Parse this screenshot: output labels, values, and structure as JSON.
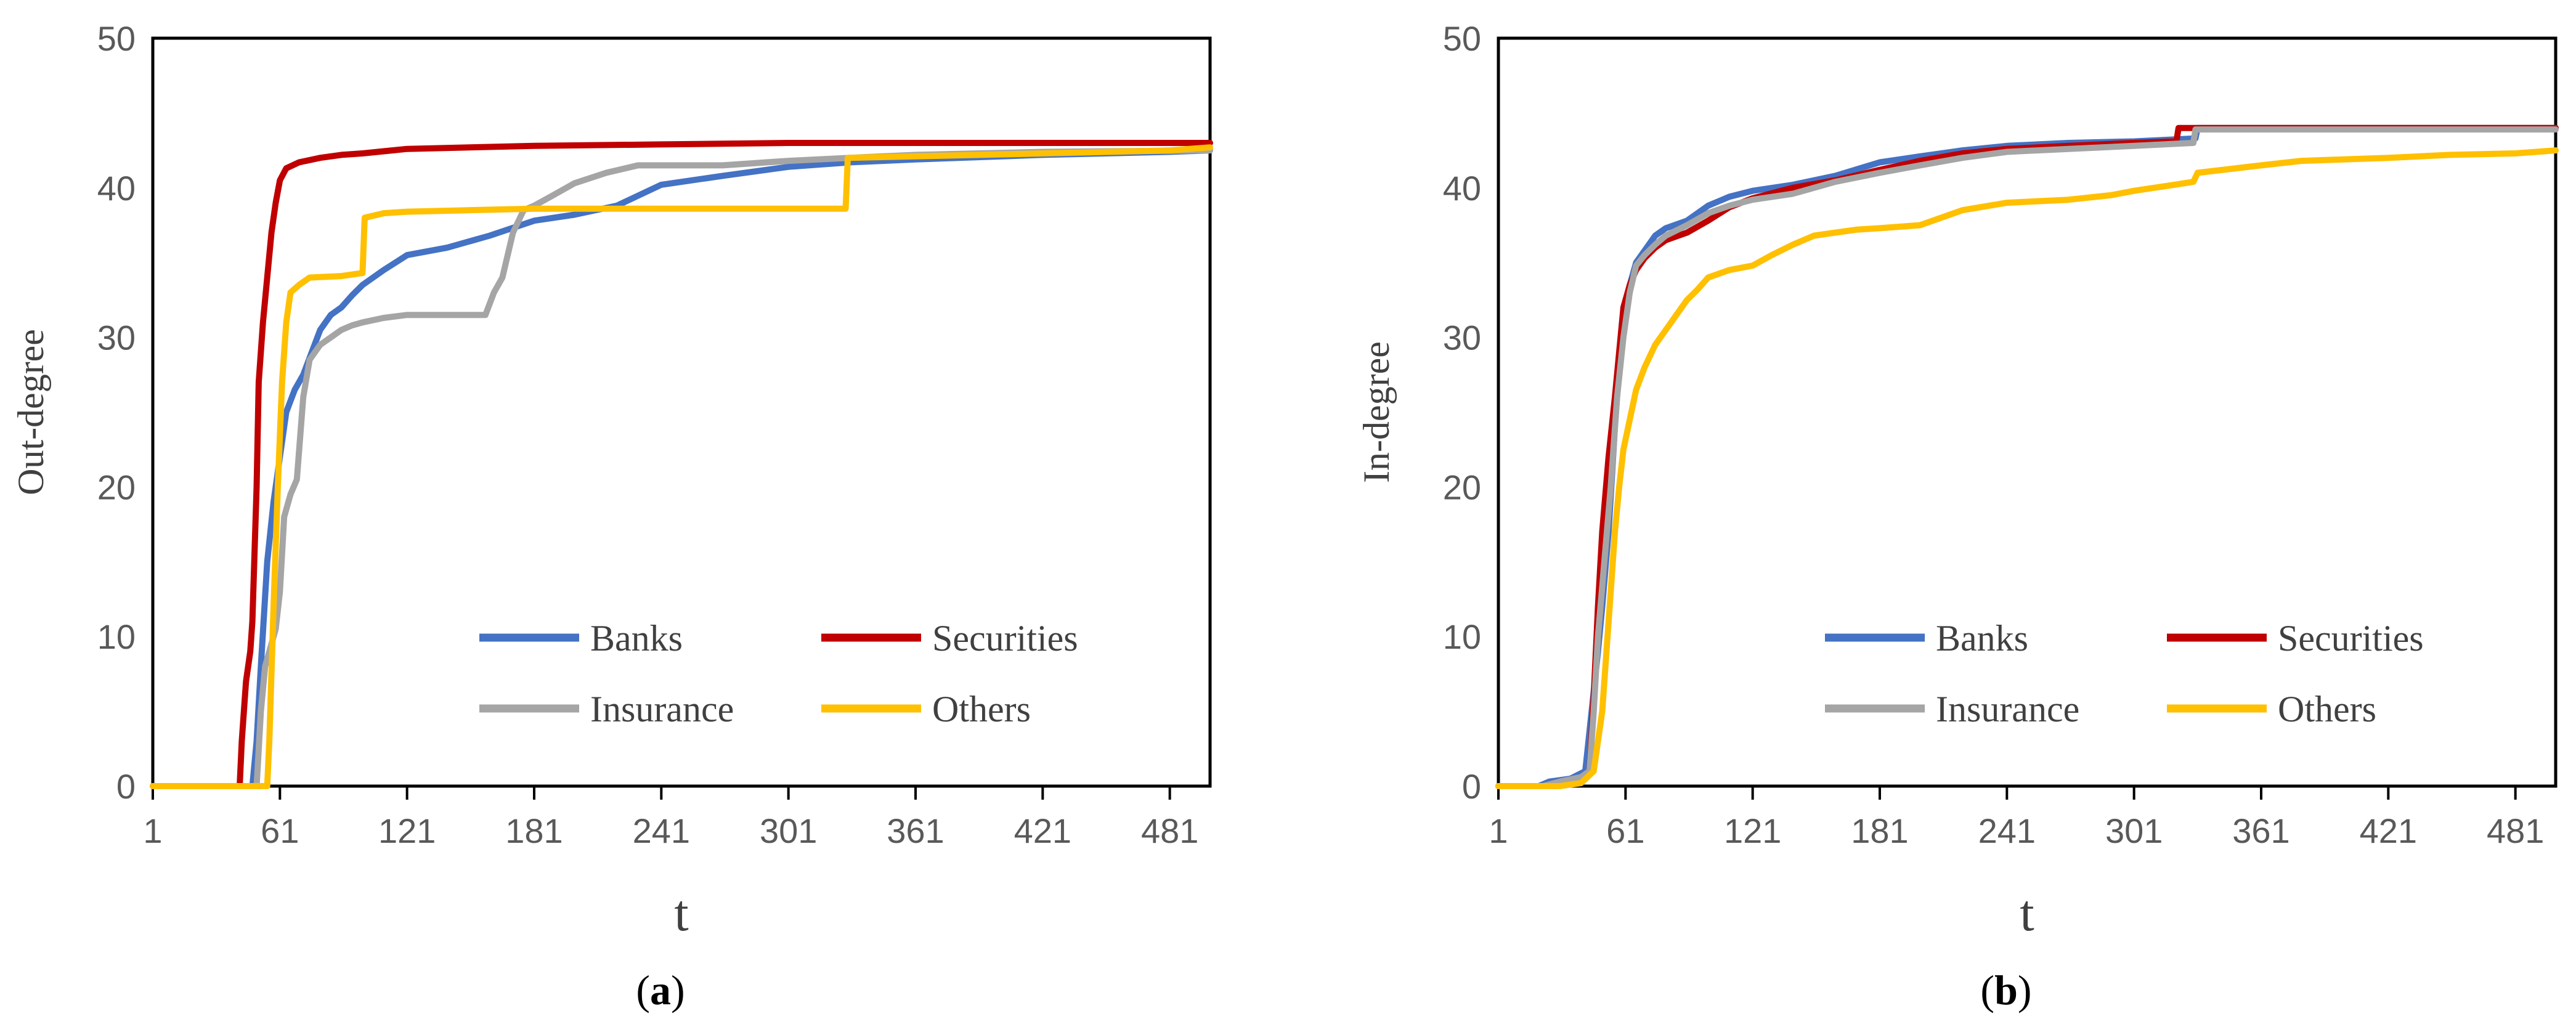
{
  "colors": {
    "banks": "#4472C4",
    "securities": "#C00000",
    "insurance": "#A5A5A5",
    "others": "#FFC000",
    "axis": "#000000",
    "tick_text": "#595959"
  },
  "chart_data": [
    {
      "id": "a",
      "type": "line",
      "caption_open": "(",
      "caption_letter": "a",
      "caption_close": ")",
      "xlabel": "t",
      "ylabel": "Out-degree",
      "xlim": [
        1,
        500
      ],
      "ylim": [
        0,
        50
      ],
      "x_ticks": [
        1,
        61,
        121,
        181,
        241,
        301,
        361,
        421,
        481
      ],
      "y_ticks": [
        0,
        10,
        20,
        30,
        40,
        50
      ],
      "legend_position": "bottom-right",
      "series": [
        {
          "name": "Banks",
          "color_key": "banks",
          "points": [
            [
              1,
              0
            ],
            [
              48,
              0
            ],
            [
              50,
              3
            ],
            [
              52,
              8
            ],
            [
              55,
              15
            ],
            [
              58,
              19
            ],
            [
              61,
              22
            ],
            [
              64,
              25
            ],
            [
              68,
              26.5
            ],
            [
              72,
              27.5
            ],
            [
              76,
              29
            ],
            [
              80,
              30.5
            ],
            [
              85,
              31.5
            ],
            [
              90,
              32
            ],
            [
              95,
              32.8
            ],
            [
              100,
              33.5
            ],
            [
              110,
              34.5
            ],
            [
              121,
              35.5
            ],
            [
              140,
              36
            ],
            [
              160,
              36.8
            ],
            [
              181,
              37.8
            ],
            [
              200,
              38.2
            ],
            [
              220,
              38.8
            ],
            [
              241,
              40.2
            ],
            [
              270,
              40.8
            ],
            [
              301,
              41.4
            ],
            [
              330,
              41.7
            ],
            [
              361,
              41.9
            ],
            [
              421,
              42.2
            ],
            [
              481,
              42.4
            ],
            [
              500,
              42.5
            ]
          ]
        },
        {
          "name": "Securities",
          "color_key": "securities",
          "points": [
            [
              1,
              0
            ],
            [
              42,
              0
            ],
            [
              43,
              3
            ],
            [
              45,
              7
            ],
            [
              47,
              9
            ],
            [
              48,
              11
            ],
            [
              50,
              20
            ],
            [
              51,
              27
            ],
            [
              53,
              31
            ],
            [
              55,
              34
            ],
            [
              57,
              37
            ],
            [
              59,
              39
            ],
            [
              61,
              40.5
            ],
            [
              64,
              41.3
            ],
            [
              70,
              41.7
            ],
            [
              80,
              42
            ],
            [
              90,
              42.2
            ],
            [
              100,
              42.3
            ],
            [
              121,
              42.6
            ],
            [
              181,
              42.8
            ],
            [
              241,
              42.9
            ],
            [
              301,
              43
            ],
            [
              421,
              43
            ],
            [
              500,
              43
            ]
          ]
        },
        {
          "name": "Insurance",
          "color_key": "insurance",
          "points": [
            [
              1,
              0
            ],
            [
              50,
              0
            ],
            [
              52,
              5
            ],
            [
              54,
              8
            ],
            [
              57,
              9.5
            ],
            [
              59,
              10.5
            ],
            [
              61,
              13
            ],
            [
              63,
              18
            ],
            [
              66,
              19.5
            ],
            [
              69,
              20.5
            ],
            [
              72,
              26
            ],
            [
              75,
              28.5
            ],
            [
              80,
              29.5
            ],
            [
              85,
              30
            ],
            [
              90,
              30.5
            ],
            [
              95,
              30.8
            ],
            [
              100,
              31
            ],
            [
              110,
              31.3
            ],
            [
              121,
              31.5
            ],
            [
              140,
              31.5
            ],
            [
              158,
              31.5
            ],
            [
              162,
              33
            ],
            [
              166,
              34
            ],
            [
              171,
              37
            ],
            [
              176,
              38.5
            ],
            [
              181,
              38.8
            ],
            [
              190,
              39.5
            ],
            [
              200,
              40.3
            ],
            [
              215,
              41
            ],
            [
              230,
              41.5
            ],
            [
              241,
              41.5
            ],
            [
              270,
              41.5
            ],
            [
              301,
              41.8
            ],
            [
              330,
              42
            ],
            [
              361,
              42.2
            ],
            [
              421,
              42.4
            ],
            [
              500,
              42.5
            ]
          ]
        },
        {
          "name": "Others",
          "color_key": "others",
          "points": [
            [
              1,
              0
            ],
            [
              55,
              0
            ],
            [
              56,
              3
            ],
            [
              58,
              12
            ],
            [
              60,
              20
            ],
            [
              62,
              27
            ],
            [
              64,
              31
            ],
            [
              66,
              33
            ],
            [
              70,
              33.5
            ],
            [
              75,
              34
            ],
            [
              90,
              34.1
            ],
            [
              100,
              34.3
            ],
            [
              101,
              38
            ],
            [
              110,
              38.3
            ],
            [
              121,
              38.4
            ],
            [
              150,
              38.5
            ],
            [
              181,
              38.6
            ],
            [
              241,
              38.6
            ],
            [
              300,
              38.6
            ],
            [
              328,
              38.6
            ],
            [
              329,
              42
            ],
            [
              361,
              42.1
            ],
            [
              421,
              42.3
            ],
            [
              481,
              42.5
            ],
            [
              500,
              42.7
            ]
          ]
        }
      ]
    },
    {
      "id": "b",
      "type": "line",
      "caption_open": "(",
      "caption_letter": "b",
      "caption_close": ")",
      "xlabel": "t",
      "ylabel": "In-degree",
      "xlim": [
        1,
        500
      ],
      "ylim": [
        0,
        50
      ],
      "x_ticks": [
        1,
        61,
        121,
        181,
        241,
        301,
        361,
        421,
        481
      ],
      "y_ticks": [
        0,
        10,
        20,
        30,
        40,
        50
      ],
      "legend_position": "bottom-right",
      "series": [
        {
          "name": "Banks",
          "color_key": "banks",
          "points": [
            [
              1,
              0
            ],
            [
              20,
              0
            ],
            [
              25,
              0.3
            ],
            [
              35,
              0.5
            ],
            [
              42,
              1
            ],
            [
              45,
              5
            ],
            [
              48,
              9
            ],
            [
              50,
              12
            ],
            [
              53,
              17
            ],
            [
              56,
              24
            ],
            [
              58,
              28
            ],
            [
              60,
              31
            ],
            [
              63,
              33.5
            ],
            [
              66,
              35
            ],
            [
              70,
              35.8
            ],
            [
              75,
              36.8
            ],
            [
              80,
              37.3
            ],
            [
              90,
              37.8
            ],
            [
              100,
              38.8
            ],
            [
              110,
              39.4
            ],
            [
              121,
              39.8
            ],
            [
              140,
              40.2
            ],
            [
              160,
              40.8
            ],
            [
              181,
              41.7
            ],
            [
              200,
              42.1
            ],
            [
              220,
              42.5
            ],
            [
              241,
              42.8
            ],
            [
              270,
              43
            ],
            [
              301,
              43.1
            ],
            [
              330,
              43.3
            ],
            [
              331,
              44
            ],
            [
              361,
              44
            ],
            [
              421,
              44
            ],
            [
              500,
              44
            ]
          ]
        },
        {
          "name": "Securities",
          "color_key": "securities",
          "points": [
            [
              1,
              0
            ],
            [
              22,
              0
            ],
            [
              30,
              0.3
            ],
            [
              40,
              0.5
            ],
            [
              44,
              1
            ],
            [
              46,
              6
            ],
            [
              48,
              12
            ],
            [
              50,
              17
            ],
            [
              53,
              22
            ],
            [
              56,
              26
            ],
            [
              58,
              29
            ],
            [
              60,
              32
            ],
            [
              63,
              33.5
            ],
            [
              66,
              34.5
            ],
            [
              70,
              35.3
            ],
            [
              75,
              36
            ],
            [
              80,
              36.5
            ],
            [
              90,
              37
            ],
            [
              100,
              37.8
            ],
            [
              110,
              38.7
            ],
            [
              121,
              39.3
            ],
            [
              140,
              40
            ],
            [
              160,
              40.5
            ],
            [
              181,
              41.2
            ],
            [
              200,
              41.8
            ],
            [
              220,
              42.3
            ],
            [
              241,
              42.6
            ],
            [
              270,
              42.8
            ],
            [
              301,
              43
            ],
            [
              321,
              43.1
            ],
            [
              322,
              44
            ],
            [
              361,
              44
            ],
            [
              421,
              44
            ],
            [
              500,
              44
            ]
          ]
        },
        {
          "name": "Insurance",
          "color_key": "insurance",
          "points": [
            [
              1,
              0
            ],
            [
              22,
              0
            ],
            [
              30,
              0.3
            ],
            [
              40,
              0.6
            ],
            [
              44,
              1
            ],
            [
              46,
              5
            ],
            [
              48,
              10
            ],
            [
              51,
              15
            ],
            [
              54,
              20
            ],
            [
              57,
              26
            ],
            [
              60,
              30
            ],
            [
              63,
              33
            ],
            [
              66,
              34.8
            ],
            [
              70,
              35.5
            ],
            [
              75,
              36.2
            ],
            [
              80,
              36.8
            ],
            [
              90,
              37.5
            ],
            [
              100,
              38.3
            ],
            [
              110,
              38.8
            ],
            [
              121,
              39.2
            ],
            [
              140,
              39.6
            ],
            [
              160,
              40.4
            ],
            [
              181,
              41
            ],
            [
              200,
              41.5
            ],
            [
              220,
              42
            ],
            [
              241,
              42.4
            ],
            [
              270,
              42.6
            ],
            [
              301,
              42.8
            ],
            [
              329,
              43
            ],
            [
              330,
              43.9
            ],
            [
              361,
              43.9
            ],
            [
              421,
              43.9
            ],
            [
              500,
              43.9
            ]
          ]
        },
        {
          "name": "Others",
          "color_key": "others",
          "points": [
            [
              1,
              0
            ],
            [
              30,
              0
            ],
            [
              40,
              0.2
            ],
            [
              46,
              1
            ],
            [
              48,
              3
            ],
            [
              50,
              5
            ],
            [
              52,
              9
            ],
            [
              54,
              13
            ],
            [
              56,
              17
            ],
            [
              58,
              20
            ],
            [
              60,
              22.5
            ],
            [
              63,
              24.5
            ],
            [
              66,
              26.5
            ],
            [
              70,
              28
            ],
            [
              75,
              29.5
            ],
            [
              80,
              30.5
            ],
            [
              85,
              31.5
            ],
            [
              90,
              32.5
            ],
            [
              95,
              33.2
            ],
            [
              100,
              34
            ],
            [
              110,
              34.5
            ],
            [
              121,
              34.8
            ],
            [
              130,
              35.5
            ],
            [
              140,
              36.2
            ],
            [
              150,
              36.8
            ],
            [
              160,
              37
            ],
            [
              170,
              37.2
            ],
            [
              181,
              37.3
            ],
            [
              200,
              37.5
            ],
            [
              220,
              38.5
            ],
            [
              241,
              39
            ],
            [
              270,
              39.2
            ],
            [
              290,
              39.5
            ],
            [
              301,
              39.8
            ],
            [
              320,
              40.2
            ],
            [
              329,
              40.4
            ],
            [
              331,
              41
            ],
            [
              361,
              41.5
            ],
            [
              380,
              41.8
            ],
            [
              421,
              42
            ],
            [
              450,
              42.2
            ],
            [
              481,
              42.3
            ],
            [
              500,
              42.5
            ]
          ]
        }
      ]
    }
  ]
}
